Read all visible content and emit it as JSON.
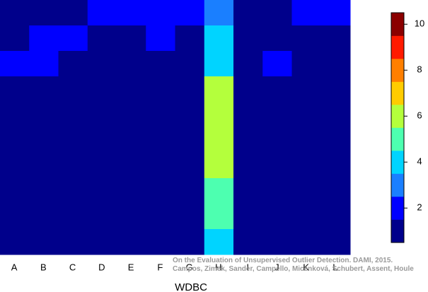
{
  "chart_data": {
    "type": "heatmap",
    "x": [
      "A",
      "B",
      "C",
      "D",
      "E",
      "F",
      "G",
      "H",
      "I",
      "J",
      "K",
      "L"
    ],
    "z": [
      [
        1,
        1,
        1,
        2,
        2,
        2,
        2,
        3,
        1,
        1,
        2,
        2
      ],
      [
        1,
        2,
        2,
        1,
        1,
        2,
        1,
        4,
        1,
        1,
        1,
        1
      ],
      [
        2,
        2,
        1,
        1,
        1,
        1,
        1,
        4,
        1,
        2,
        1,
        1
      ],
      [
        1,
        1,
        1,
        1,
        1,
        1,
        1,
        6,
        1,
        1,
        1,
        1
      ],
      [
        1,
        1,
        1,
        1,
        1,
        1,
        1,
        6,
        1,
        1,
        1,
        1
      ],
      [
        1,
        1,
        1,
        1,
        1,
        1,
        1,
        6,
        1,
        1,
        1,
        1
      ],
      [
        1,
        1,
        1,
        1,
        1,
        1,
        1,
        6,
        1,
        1,
        1,
        1
      ],
      [
        1,
        1,
        1,
        1,
        1,
        1,
        1,
        5,
        1,
        1,
        1,
        1
      ],
      [
        1,
        1,
        1,
        1,
        1,
        1,
        1,
        5,
        1,
        1,
        1,
        1
      ],
      [
        1,
        1,
        1,
        1,
        1,
        1,
        1,
        4,
        1,
        1,
        1,
        1
      ]
    ],
    "xlabel": "WDBC",
    "clim": [
      0.5,
      10.5
    ],
    "cticks": [
      2,
      4,
      6,
      8,
      10
    ],
    "colorscale": [
      "#00008b",
      "#0000ff",
      "#1a7fff",
      "#00d4ff",
      "#4dffb0",
      "#b4ff3c",
      "#ffcc00",
      "#ff7f00",
      "#ff1a00",
      "#8b0000"
    ],
    "annotations": [
      "On the Evaluation of Unsupervised Outlier Detection. DAMI, 2015.",
      "Campos, Zimek, Sander, Campello, Micenková, Schubert, Assent, Houle"
    ]
  }
}
